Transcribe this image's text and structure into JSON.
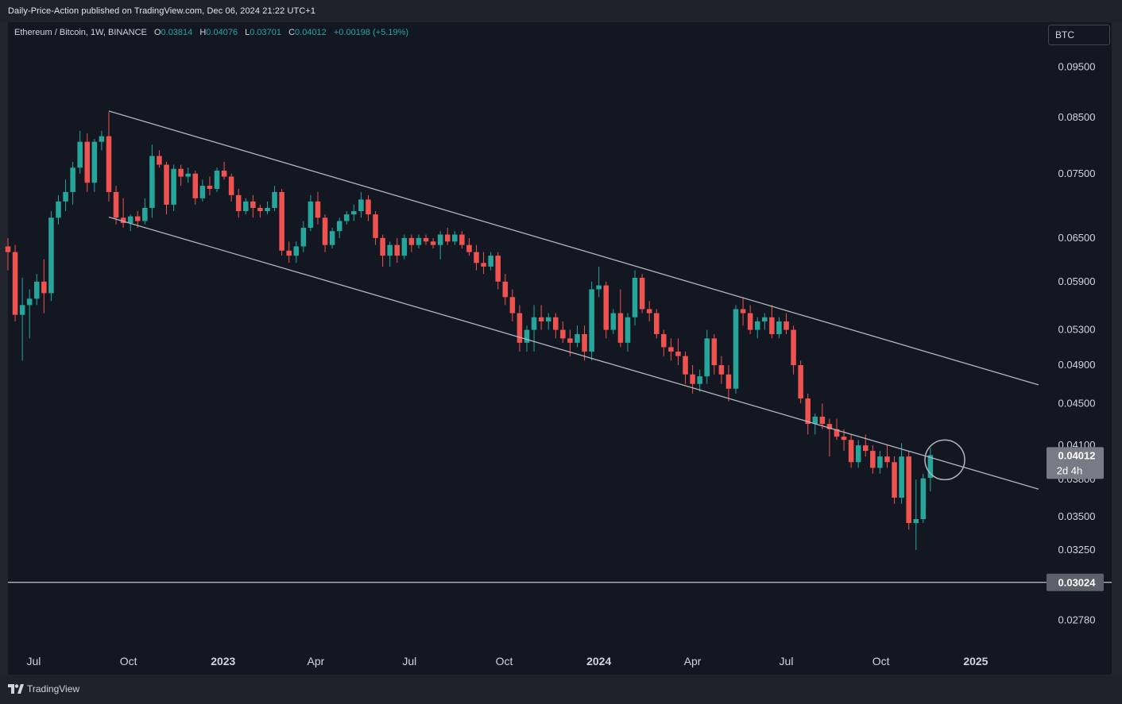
{
  "header": {
    "published_text": "Daily-Price-Action published on TradingView.com, Dec 06, 2024 21:22 UTC+1"
  },
  "symbol": {
    "name": "Ethereum / Bitcoin, 1W, BINANCE",
    "o_label": "O",
    "o_value": "0.03814",
    "h_label": "H",
    "h_value": "0.04076",
    "l_label": "L",
    "l_value": "0.03701",
    "c_label": "C",
    "c_value": "0.04012",
    "change": "+0.00198 (+5.19%)"
  },
  "currency_button": "BTC",
  "price_axis": {
    "ticks": [
      "0.09500",
      "0.08500",
      "0.07500",
      "0.06500",
      "0.05900",
      "0.05300",
      "0.04900",
      "0.04500",
      "0.04100",
      "0.03800",
      "0.03500",
      "0.03250",
      "0.02780"
    ],
    "last_price_label": "0.04012",
    "countdown_label": "2d 4h",
    "support_label": "0.03024"
  },
  "time_axis": {
    "labels": [
      {
        "text": "Jul",
        "bold": false
      },
      {
        "text": "Oct",
        "bold": false
      },
      {
        "text": "2023",
        "bold": true
      },
      {
        "text": "Apr",
        "bold": false
      },
      {
        "text": "Jul",
        "bold": false
      },
      {
        "text": "Oct",
        "bold": false
      },
      {
        "text": "2024",
        "bold": true
      },
      {
        "text": "Apr",
        "bold": false
      },
      {
        "text": "Jul",
        "bold": false
      },
      {
        "text": "Oct",
        "bold": false
      },
      {
        "text": "2025",
        "bold": true
      }
    ]
  },
  "footer": {
    "brand": "TradingView"
  },
  "colors": {
    "up": "#26a69a",
    "down": "#ef5350",
    "background": "#131722",
    "trendline": "#b2b5be",
    "axis_text": "#d1d4dc"
  },
  "chart_data": {
    "type": "candlestick",
    "interval": "1W",
    "y_scale": "log",
    "ylim": [
      0.0262,
      0.105
    ],
    "xlim": [
      "2022-06-06",
      "2025-03-10"
    ],
    "first_bar_date": "2022-06-06",
    "candles": [
      [
        0.0638,
        0.065,
        0.0605,
        0.063
      ],
      [
        0.063,
        0.064,
        0.054,
        0.0548
      ],
      [
        0.0548,
        0.0595,
        0.0495,
        0.056
      ],
      [
        0.056,
        0.058,
        0.052,
        0.0568
      ],
      [
        0.0568,
        0.06,
        0.056,
        0.059
      ],
      [
        0.059,
        0.062,
        0.055,
        0.0575
      ],
      [
        0.0575,
        0.069,
        0.0565,
        0.068
      ],
      [
        0.068,
        0.0715,
        0.067,
        0.0705
      ],
      [
        0.0705,
        0.074,
        0.069,
        0.072
      ],
      [
        0.072,
        0.077,
        0.07,
        0.076
      ],
      [
        0.076,
        0.0825,
        0.075,
        0.0805
      ],
      [
        0.0805,
        0.082,
        0.072,
        0.0735
      ],
      [
        0.0735,
        0.081,
        0.072,
        0.0805
      ],
      [
        0.0805,
        0.0825,
        0.079,
        0.0815
      ],
      [
        0.0815,
        0.086,
        0.0705,
        0.072
      ],
      [
        0.072,
        0.073,
        0.067,
        0.068
      ],
      [
        0.068,
        0.071,
        0.0665,
        0.0672
      ],
      [
        0.0672,
        0.0685,
        0.066,
        0.0682
      ],
      [
        0.0682,
        0.069,
        0.0665,
        0.0675
      ],
      [
        0.0675,
        0.071,
        0.067,
        0.0695
      ],
      [
        0.0695,
        0.08,
        0.068,
        0.078
      ],
      [
        0.078,
        0.079,
        0.076,
        0.0765
      ],
      [
        0.0765,
        0.077,
        0.0685,
        0.07
      ],
      [
        0.07,
        0.0765,
        0.069,
        0.0758
      ],
      [
        0.0758,
        0.0765,
        0.073,
        0.0745
      ],
      [
        0.0745,
        0.076,
        0.0735,
        0.075
      ],
      [
        0.075,
        0.0755,
        0.07,
        0.071
      ],
      [
        0.071,
        0.074,
        0.0705,
        0.073
      ],
      [
        0.073,
        0.0745,
        0.0715,
        0.0725
      ],
      [
        0.0725,
        0.076,
        0.072,
        0.0755
      ],
      [
        0.0755,
        0.077,
        0.074,
        0.0745
      ],
      [
        0.0745,
        0.075,
        0.0705,
        0.0715
      ],
      [
        0.0715,
        0.0725,
        0.068,
        0.069
      ],
      [
        0.069,
        0.071,
        0.0685,
        0.0705
      ],
      [
        0.0705,
        0.0715,
        0.068,
        0.0695
      ],
      [
        0.0695,
        0.07,
        0.068,
        0.069
      ],
      [
        0.069,
        0.0705,
        0.0685,
        0.0695
      ],
      [
        0.0695,
        0.073,
        0.069,
        0.072
      ],
      [
        0.072,
        0.0725,
        0.0625,
        0.0632
      ],
      [
        0.0632,
        0.0645,
        0.0615,
        0.0625
      ],
      [
        0.0625,
        0.0645,
        0.0615,
        0.0638
      ],
      [
        0.0638,
        0.0675,
        0.063,
        0.0665
      ],
      [
        0.0665,
        0.0715,
        0.066,
        0.0705
      ],
      [
        0.0705,
        0.072,
        0.067,
        0.068
      ],
      [
        0.068,
        0.0685,
        0.063,
        0.064
      ],
      [
        0.064,
        0.0665,
        0.0635,
        0.066
      ],
      [
        0.066,
        0.068,
        0.065,
        0.0675
      ],
      [
        0.0675,
        0.069,
        0.067,
        0.0685
      ],
      [
        0.0685,
        0.07,
        0.0675,
        0.069
      ],
      [
        0.069,
        0.072,
        0.068,
        0.0708
      ],
      [
        0.0708,
        0.0715,
        0.0675,
        0.0685
      ],
      [
        0.0685,
        0.069,
        0.064,
        0.065
      ],
      [
        0.065,
        0.0655,
        0.061,
        0.0625
      ],
      [
        0.0625,
        0.0645,
        0.061,
        0.064
      ],
      [
        0.064,
        0.065,
        0.0615,
        0.0625
      ],
      [
        0.0625,
        0.0655,
        0.062,
        0.065
      ],
      [
        0.065,
        0.0655,
        0.063,
        0.064
      ],
      [
        0.064,
        0.0655,
        0.0635,
        0.065
      ],
      [
        0.065,
        0.0655,
        0.064,
        0.0645
      ],
      [
        0.0645,
        0.065,
        0.0635,
        0.064
      ],
      [
        0.064,
        0.066,
        0.062,
        0.0655
      ],
      [
        0.0655,
        0.0665,
        0.064,
        0.0645
      ],
      [
        0.0645,
        0.066,
        0.064,
        0.0655
      ],
      [
        0.0655,
        0.066,
        0.0635,
        0.064
      ],
      [
        0.064,
        0.065,
        0.0625,
        0.063
      ],
      [
        0.063,
        0.064,
        0.0605,
        0.0615
      ],
      [
        0.0615,
        0.063,
        0.06,
        0.061
      ],
      [
        0.061,
        0.063,
        0.0605,
        0.0625
      ],
      [
        0.0625,
        0.063,
        0.058,
        0.059
      ],
      [
        0.059,
        0.06,
        0.056,
        0.057
      ],
      [
        0.057,
        0.058,
        0.054,
        0.055
      ],
      [
        0.055,
        0.056,
        0.0505,
        0.0515
      ],
      [
        0.0515,
        0.0535,
        0.0505,
        0.053
      ],
      [
        0.053,
        0.056,
        0.0505,
        0.0545
      ],
      [
        0.0545,
        0.056,
        0.053,
        0.054
      ],
      [
        0.054,
        0.055,
        0.053,
        0.0545
      ],
      [
        0.0545,
        0.055,
        0.052,
        0.053
      ],
      [
        0.053,
        0.054,
        0.0515,
        0.052
      ],
      [
        0.052,
        0.053,
        0.05,
        0.0515
      ],
      [
        0.0515,
        0.0535,
        0.051,
        0.0525
      ],
      [
        0.0525,
        0.0535,
        0.0495,
        0.0505
      ],
      [
        0.0505,
        0.059,
        0.0495,
        0.058
      ],
      [
        0.058,
        0.061,
        0.057,
        0.0585
      ],
      [
        0.0585,
        0.059,
        0.052,
        0.053
      ],
      [
        0.053,
        0.0555,
        0.0525,
        0.055
      ],
      [
        0.055,
        0.058,
        0.051,
        0.0515
      ],
      [
        0.0515,
        0.055,
        0.0505,
        0.0545
      ],
      [
        0.0545,
        0.0605,
        0.0535,
        0.0595
      ],
      [
        0.0595,
        0.06,
        0.055,
        0.0555
      ],
      [
        0.0555,
        0.0565,
        0.054,
        0.055
      ],
      [
        0.055,
        0.0555,
        0.052,
        0.0525
      ],
      [
        0.0525,
        0.053,
        0.05,
        0.051
      ],
      [
        0.051,
        0.052,
        0.0495,
        0.0505
      ],
      [
        0.0505,
        0.052,
        0.049,
        0.05
      ],
      [
        0.05,
        0.0505,
        0.047,
        0.048
      ],
      [
        0.048,
        0.049,
        0.046,
        0.047
      ],
      [
        0.047,
        0.0485,
        0.0462,
        0.0478
      ],
      [
        0.0478,
        0.053,
        0.047,
        0.052
      ],
      [
        0.052,
        0.0525,
        0.048,
        0.049
      ],
      [
        0.049,
        0.05,
        0.047,
        0.048
      ],
      [
        0.048,
        0.049,
        0.0452,
        0.0465
      ],
      [
        0.0465,
        0.056,
        0.046,
        0.0555
      ],
      [
        0.0555,
        0.057,
        0.0535,
        0.055
      ],
      [
        0.055,
        0.056,
        0.0525,
        0.053
      ],
      [
        0.053,
        0.0545,
        0.052,
        0.054
      ],
      [
        0.054,
        0.055,
        0.053,
        0.0545
      ],
      [
        0.0545,
        0.056,
        0.052,
        0.0525
      ],
      [
        0.0525,
        0.0545,
        0.052,
        0.054
      ],
      [
        0.054,
        0.055,
        0.0525,
        0.053
      ],
      [
        0.053,
        0.0535,
        0.048,
        0.049
      ],
      [
        0.049,
        0.0495,
        0.045,
        0.0455
      ],
      [
        0.0455,
        0.046,
        0.042,
        0.043
      ],
      [
        0.043,
        0.044,
        0.042,
        0.0437
      ],
      [
        0.0437,
        0.045,
        0.0425,
        0.043
      ],
      [
        0.043,
        0.0435,
        0.04,
        0.0425
      ],
      [
        0.0425,
        0.0435,
        0.0415,
        0.0418
      ],
      [
        0.0418,
        0.0425,
        0.0405,
        0.0415
      ],
      [
        0.0415,
        0.042,
        0.039,
        0.0395
      ],
      [
        0.0395,
        0.0415,
        0.039,
        0.041
      ],
      [
        0.041,
        0.042,
        0.04,
        0.0405
      ],
      [
        0.0405,
        0.041,
        0.0385,
        0.039
      ],
      [
        0.039,
        0.0405,
        0.0385,
        0.04
      ],
      [
        0.04,
        0.041,
        0.039,
        0.0395
      ],
      [
        0.0395,
        0.04,
        0.036,
        0.0365
      ],
      [
        0.0365,
        0.0412,
        0.036,
        0.04
      ],
      [
        0.04,
        0.0405,
        0.034,
        0.0345
      ],
      [
        0.0345,
        0.038,
        0.0325,
        0.0348
      ],
      [
        0.0348,
        0.0385,
        0.0345,
        0.0381
      ],
      [
        0.03814,
        0.04076,
        0.03701,
        0.04012
      ]
    ],
    "lines": [
      {
        "name": "channel-upper",
        "from": [
          "2022-09-12",
          0.0862
        ],
        "to": [
          "2025-03-03",
          0.0469
        ]
      },
      {
        "name": "channel-lower",
        "from": [
          "2022-09-12",
          0.0681
        ],
        "to": [
          "2025-03-03",
          0.0372
        ]
      },
      {
        "name": "support",
        "horizontal": 0.03024
      }
    ],
    "annotations": [
      {
        "type": "circle",
        "date": "2024-12-02",
        "price": 0.0397
      }
    ]
  }
}
